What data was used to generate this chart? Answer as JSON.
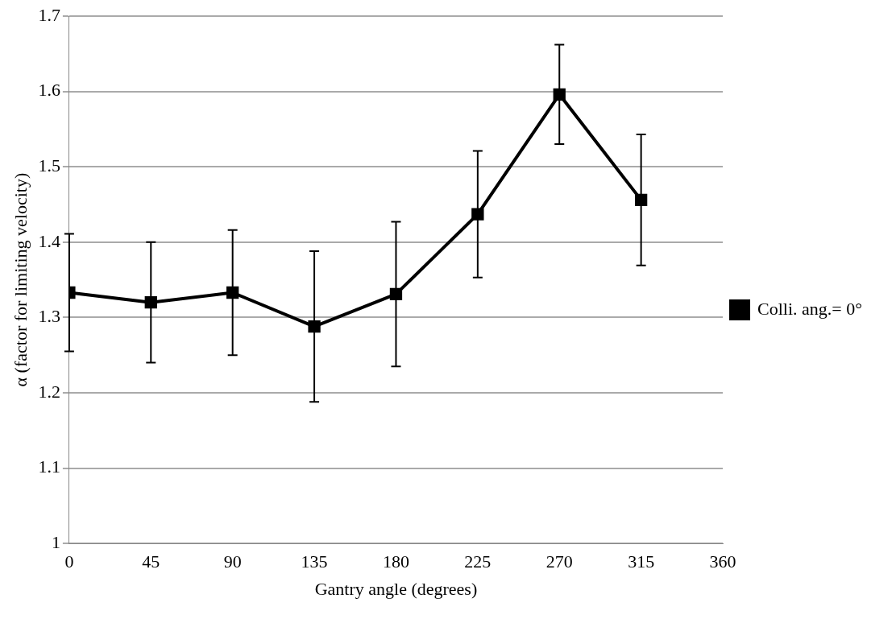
{
  "chart_data": {
    "type": "line",
    "xlabel": "Gantry angle (degrees)",
    "ylabel": "α (factor for limiting velocity)",
    "x": [
      0,
      45,
      90,
      135,
      180,
      225,
      270,
      315
    ],
    "series": [
      {
        "name": "Colli. ang.= 0°",
        "color": "#000000",
        "values": [
          1.333,
          1.32,
          1.333,
          1.288,
          1.331,
          1.437,
          1.596,
          1.456
        ],
        "errors": [
          0.078,
          0.08,
          0.083,
          0.1,
          0.096,
          0.084,
          0.066,
          0.087
        ]
      }
    ],
    "xlim": [
      0,
      360
    ],
    "xticks": [
      0,
      45,
      90,
      135,
      180,
      225,
      270,
      315,
      360
    ],
    "ylim": [
      1,
      1.7
    ],
    "yticks": [
      1,
      1.1,
      1.2,
      1.3,
      1.4,
      1.5,
      1.6,
      1.7
    ],
    "grid": "y",
    "legend": "right",
    "marker": "square",
    "line_style": "solid"
  }
}
